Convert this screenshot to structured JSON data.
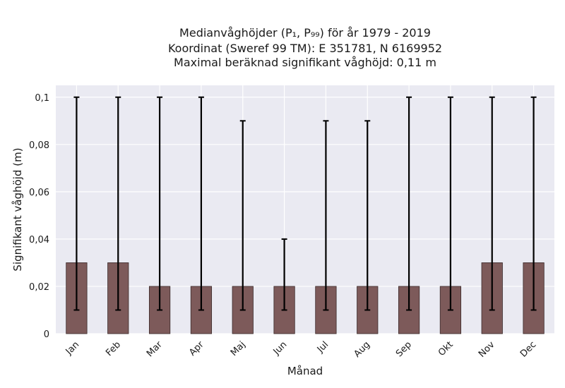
{
  "chart_data": {
    "type": "bar",
    "title_lines": [
      "Medianvåghöjder (P₁, P₉₉) för år 1979 - 2019",
      "Koordinat (Sweref 99 TM): E 351781, N 6169952",
      "Maximal beräknad signifikant våghöjd: 0,11 m"
    ],
    "xlabel": "Månad",
    "ylabel": "Signifikant våghöjd (m)",
    "categories": [
      "Jan",
      "Feb",
      "Mar",
      "Apr",
      "Maj",
      "Jun",
      "Jul",
      "Aug",
      "Sep",
      "Okt",
      "Nov",
      "Dec"
    ],
    "values": [
      0.03,
      0.03,
      0.02,
      0.02,
      0.02,
      0.02,
      0.02,
      0.02,
      0.02,
      0.02,
      0.03,
      0.03
    ],
    "error_low": [
      0.01,
      0.01,
      0.01,
      0.01,
      0.01,
      0.01,
      0.01,
      0.01,
      0.01,
      0.01,
      0.01,
      0.01
    ],
    "error_high": [
      0.1,
      0.1,
      0.1,
      0.1,
      0.09,
      0.04,
      0.09,
      0.09,
      0.1,
      0.1,
      0.1,
      0.1
    ],
    "ylim": [
      0,
      0.105
    ],
    "yticks": [
      0,
      0.02,
      0.04,
      0.06,
      0.08,
      0.1
    ],
    "ytick_labels": [
      "0",
      "0,02",
      "0,04",
      "0,06",
      "0,08",
      "0,1"
    ],
    "grid": true,
    "colors": {
      "bar_fill": "#7d5a5a",
      "bar_edge": "#3a2a2a",
      "error_bar": "#000000",
      "plot_background": "#eaeaf2",
      "grid": "#ffffff"
    }
  }
}
